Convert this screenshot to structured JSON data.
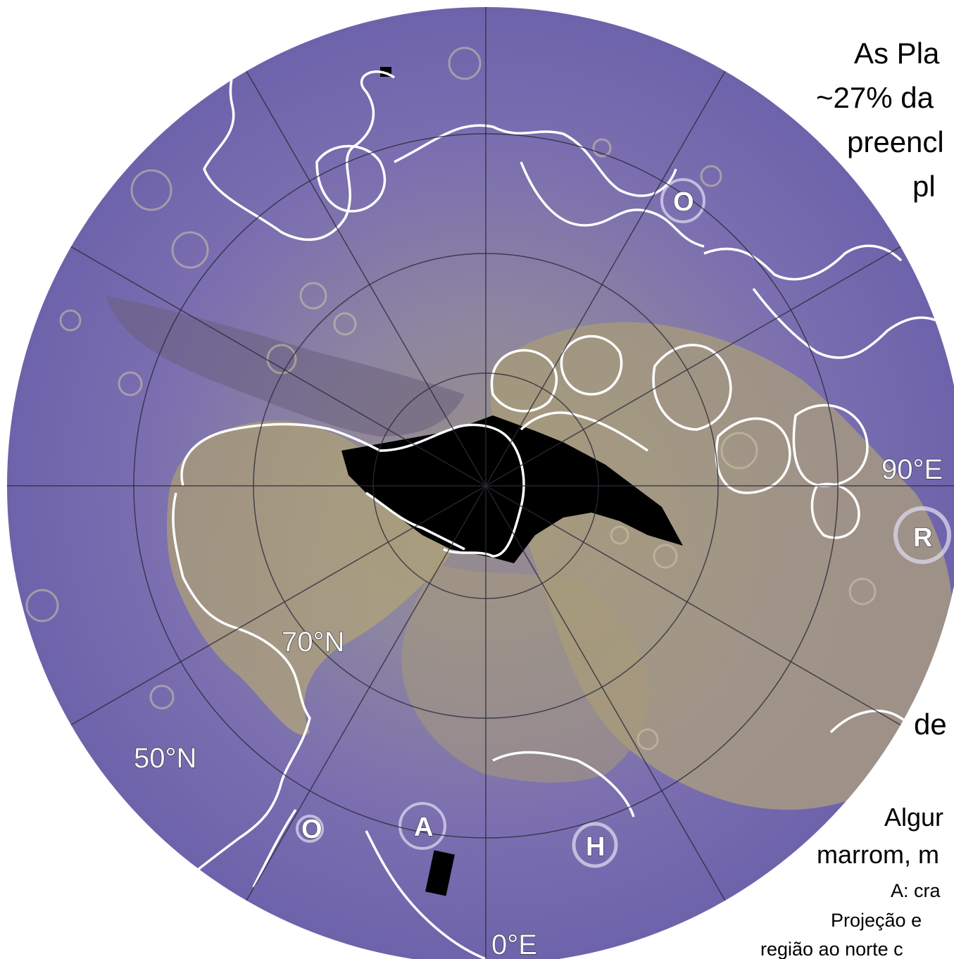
{
  "map": {
    "latitude_labels": [
      "70°N",
      "50°N"
    ],
    "longitude_labels": [
      "90°E",
      "0°E"
    ],
    "crater_markers": [
      "O",
      "R",
      "A",
      "H",
      "O"
    ],
    "colors": {
      "surface_base": "#7b6fb0",
      "smooth_plains": "#a69a70",
      "outline": "#ffffff",
      "grid": "#2a2a3a",
      "no_data": "#000000"
    }
  },
  "captions": {
    "line1": "As Pla",
    "line2": "~27% da",
    "line3": "preencl",
    "line4": "pl",
    "line5": "de",
    "line6": "Algur",
    "line7": "marrom, m",
    "line8": "A: cra",
    "line9": "Projeção e",
    "line10": "região ao norte c"
  }
}
